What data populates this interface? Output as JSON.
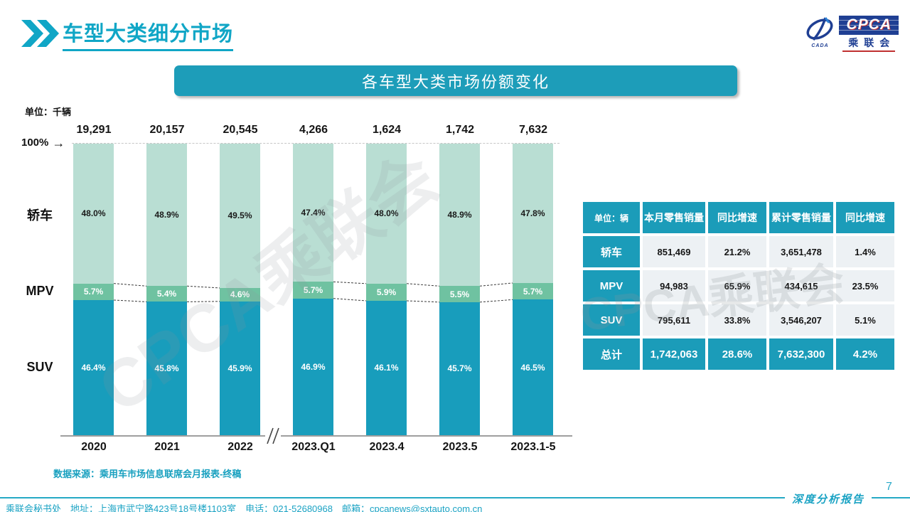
{
  "header": {
    "title": "车型大类细分市场"
  },
  "logo": {
    "cpca": "CPCA",
    "sub": "乘联会",
    "emblem_sub": "CADA"
  },
  "banner": {
    "title": "各车型大类市场份额变化"
  },
  "chart_data": {
    "type": "bar",
    "subtype": "100%-stacked-column",
    "unit_label": "单位：千辆",
    "axis_100_label": "100%",
    "axis_100_arrow": "→",
    "categories": [
      "2020",
      "2021",
      "2022",
      "2023.Q1",
      "2023.4",
      "2023.5",
      "2023.1-5"
    ],
    "totals": [
      "19,291",
      "20,157",
      "20,545",
      "4,266",
      "1,624",
      "1,742",
      "7,632"
    ],
    "series": [
      {
        "name": "轿车",
        "color": "#b9ded3",
        "label_color": "#1a1a1a",
        "values": [
          48.0,
          48.9,
          49.5,
          47.4,
          48.0,
          48.9,
          47.8
        ]
      },
      {
        "name": "MPV",
        "color": "#6fc2a1",
        "label_color": "#ffffff",
        "values": [
          5.7,
          5.4,
          4.6,
          5.7,
          5.9,
          5.5,
          5.7
        ]
      },
      {
        "name": "SUV",
        "color": "#189dbc",
        "label_color": "#ffffff",
        "values": [
          46.4,
          45.8,
          45.9,
          46.9,
          46.1,
          45.7,
          46.5
        ]
      }
    ],
    "axis_break_after_index": 2,
    "legend_position": "left",
    "grid": false,
    "ylim": [
      0,
      100
    ]
  },
  "table": {
    "headers": [
      "单位：辆",
      "本月零售销量",
      "同比增速",
      "累计零售销量",
      "同比增速"
    ],
    "rows": [
      {
        "label": "轿车",
        "cells": [
          "851,469",
          "21.2%",
          "3,651,478",
          "1.4%"
        ],
        "total": false
      },
      {
        "label": "MPV",
        "cells": [
          "94,983",
          "65.9%",
          "434,615",
          "23.5%"
        ],
        "total": false
      },
      {
        "label": "SUV",
        "cells": [
          "795,611",
          "33.8%",
          "3,546,207",
          "5.1%"
        ],
        "total": false
      },
      {
        "label": "总计",
        "cells": [
          "1,742,063",
          "28.6%",
          "7,632,300",
          "4.2%"
        ],
        "total": true
      }
    ]
  },
  "source_note": "数据来源：乘用车市场信息联席会月报表-终稿",
  "watermark": "CPCA乘联会",
  "footer": {
    "text": "乘联会秘书处　地址：上海市武宁路423号18号楼1103室　电话：021-52680968　邮箱：cpcanews@sxtauto.com.cn",
    "report_label": "深度分析报告",
    "page": "7"
  },
  "colors": {
    "accent_teal": "#10a6c6",
    "banner_teal": "#1d9db9",
    "table_teal": "#1b9cb9",
    "sedan_green": "#b9ded3",
    "mpv_green": "#6fc2a1",
    "suv_teal": "#189dbc",
    "footer_teal": "#1ba3c4",
    "logo_navy": "#1f3f93"
  }
}
